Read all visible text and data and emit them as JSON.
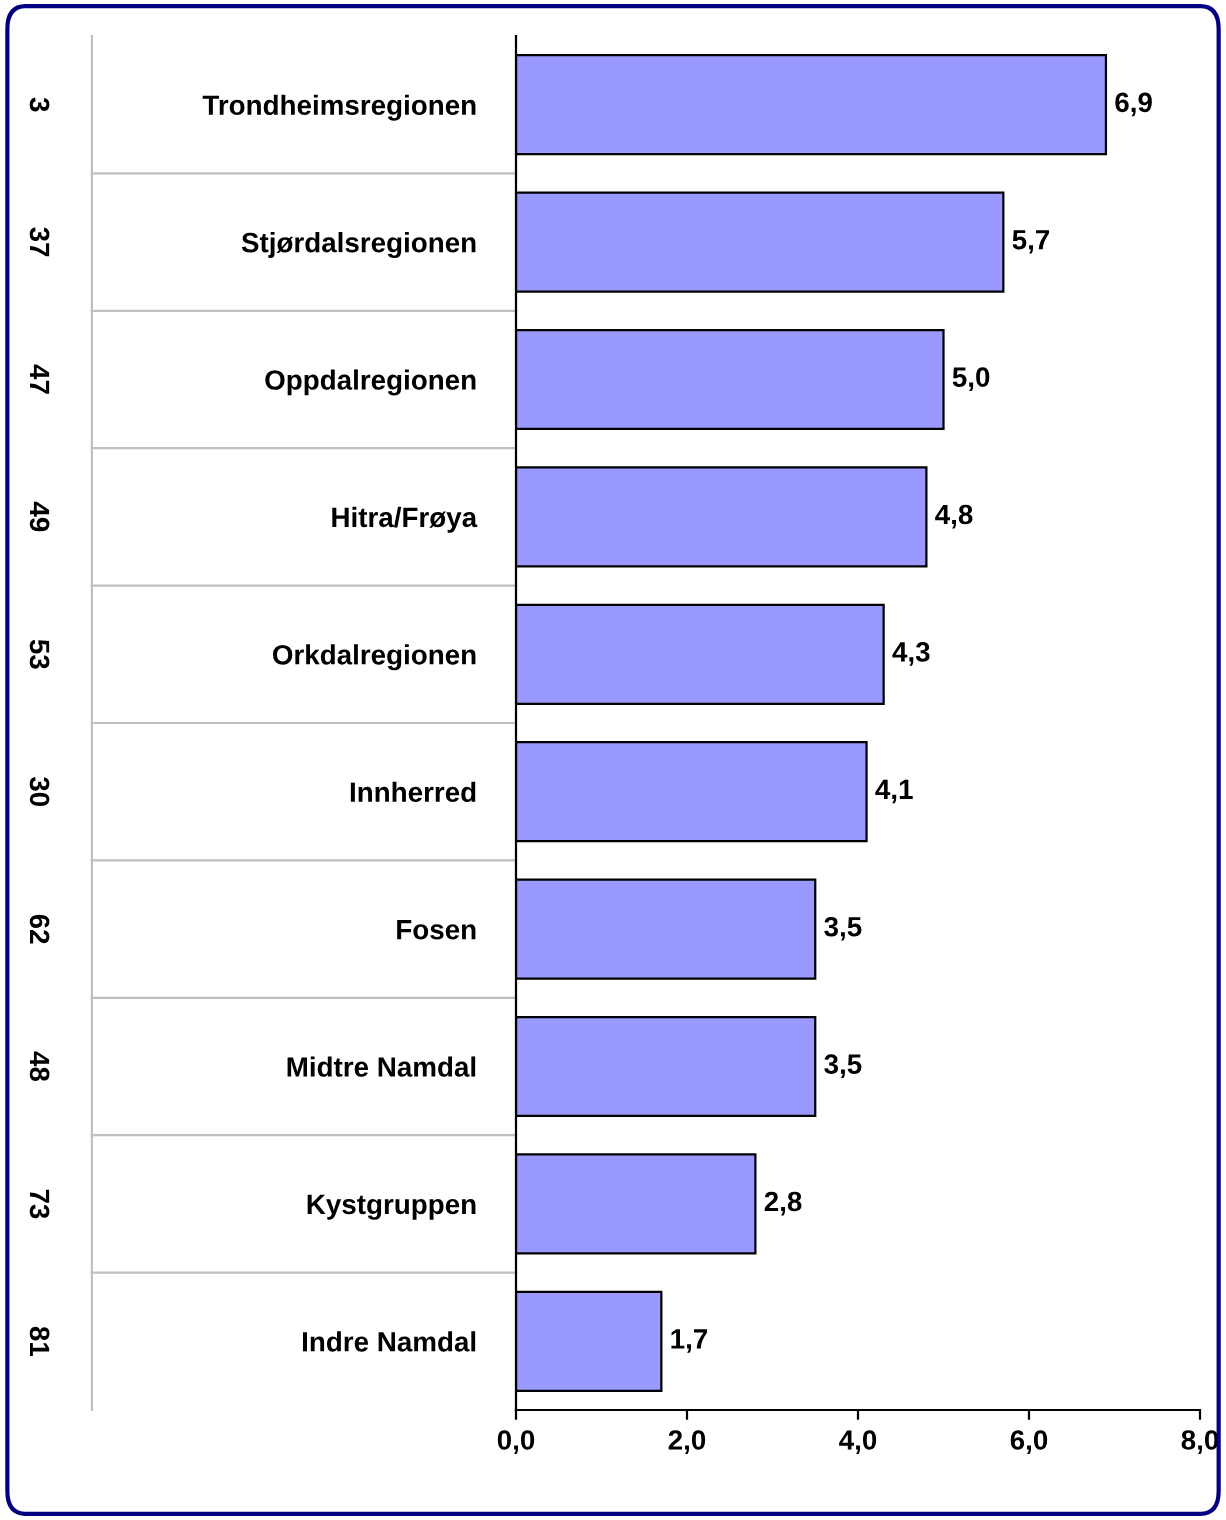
{
  "chart_data": {
    "type": "bar",
    "orientation": "horizontal",
    "categories": [
      "Trondheimsregionen",
      "Stjørdalsregionen",
      "Oppdalregionen",
      "Hitra/Frøya",
      "Orkdalregionen",
      "Innherred",
      "Fosen",
      "Midtre Namdal",
      "Kystgruppen",
      "Indre Namdal"
    ],
    "values": [
      6.9,
      5.7,
      5.0,
      4.8,
      4.3,
      4.1,
      3.5,
      3.5,
      2.8,
      1.7
    ],
    "value_labels": [
      "6,9",
      "5,7",
      "5,0",
      "4,8",
      "4,3",
      "4,1",
      "3,5",
      "3,5",
      "2,8",
      "1,7"
    ],
    "color": "#9999ff",
    "annotations": [
      "3",
      "37",
      "47",
      "49",
      "53",
      "30",
      "62",
      "48",
      "73",
      "81"
    ],
    "xlim": [
      0,
      8
    ],
    "xticks": [
      {
        "value": 0,
        "label": "0,0"
      },
      {
        "value": 2,
        "label": "2,0"
      },
      {
        "value": 4,
        "label": "4,0"
      },
      {
        "value": 6,
        "label": "6,0"
      },
      {
        "value": 8,
        "label": "8,0"
      }
    ],
    "grid": false,
    "legend": false
  }
}
